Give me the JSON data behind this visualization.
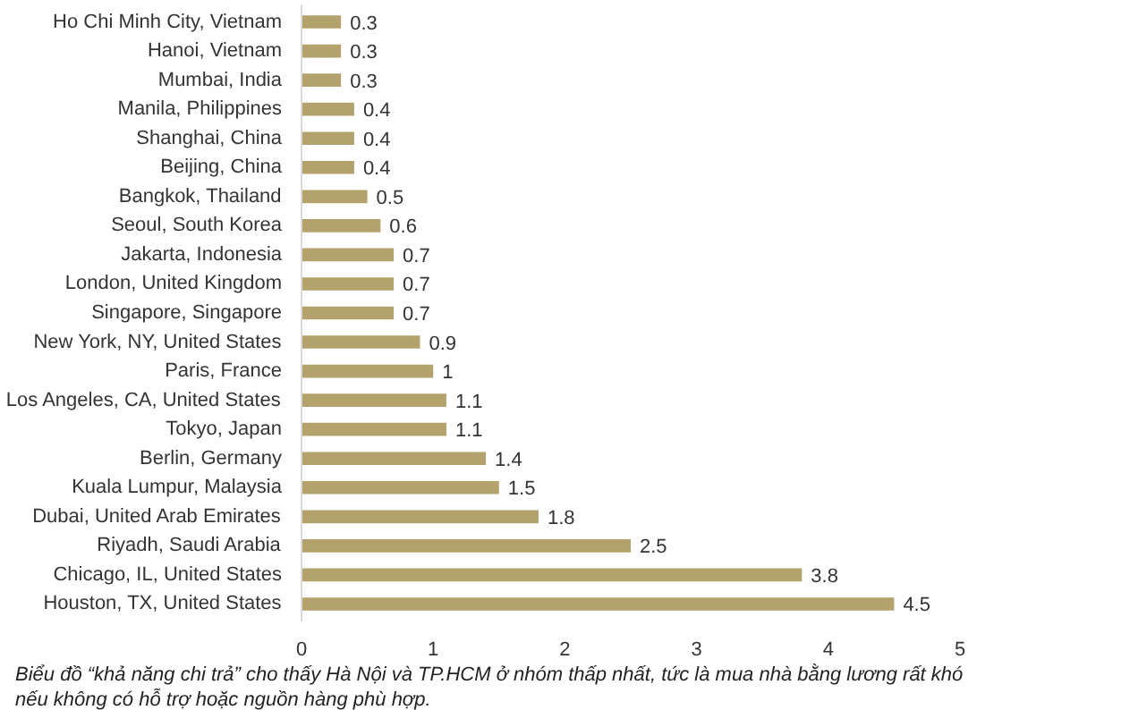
{
  "chart_data": {
    "type": "bar",
    "orientation": "horizontal",
    "categories": [
      "Ho Chi Minh City, Vietnam",
      "Hanoi, Vietnam",
      "Mumbai, India",
      "Manila, Philippines",
      "Shanghai, China",
      "Beijing, China",
      "Bangkok, Thailand",
      "Seoul, South Korea",
      "Jakarta, Indonesia",
      "London, United Kingdom",
      "Singapore, Singapore",
      "New York, NY, United States",
      "Paris, France",
      "Los Angeles, CA, United States",
      "Tokyo, Japan",
      "Berlin, Germany",
      "Kuala Lumpur, Malaysia",
      "Dubai, United Arab Emirates",
      "Riyadh, Saudi Arabia",
      "Chicago, IL, United States",
      "Houston, TX, United States"
    ],
    "values": [
      0.3,
      0.3,
      0.3,
      0.4,
      0.4,
      0.4,
      0.5,
      0.6,
      0.7,
      0.7,
      0.7,
      0.9,
      1,
      1.1,
      1.1,
      1.4,
      1.5,
      1.8,
      2.5,
      3.8,
      4.5
    ],
    "value_labels": [
      "0.3",
      "0.3",
      "0.3",
      "0.4",
      "0.4",
      "0.4",
      "0.5",
      "0.6",
      "0.7",
      "0.7",
      "0.7",
      "0.9",
      "1",
      "1.1",
      "1.1",
      "1.4",
      "1.5",
      "1.8",
      "2.5",
      "3.8",
      "4.5"
    ],
    "color": "#b3a26b",
    "xlim": [
      0,
      5
    ],
    "xticks": [
      0,
      1,
      2,
      3,
      4,
      5
    ],
    "grid": false,
    "annotations": [
      "Biểu đồ “khả năng chi trả” cho thấy Hà Nội và TP.HCM ở nhóm thấp nhất, tức là mua nhà bằng lương rất khó nếu không có hỗ trợ hoặc nguồn hàng phù hợp."
    ]
  }
}
